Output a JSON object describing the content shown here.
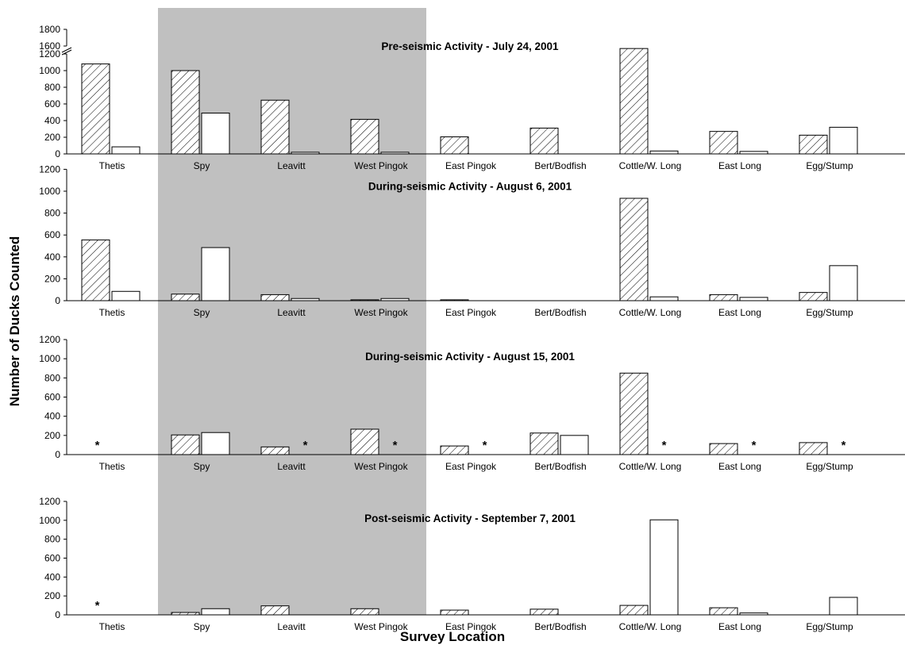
{
  "figure": {
    "ylabel": "Number of Ducks Counted",
    "xlabel": "Survey Location"
  },
  "chart_data": [
    {
      "type": "bar",
      "title": "Pre-seismic Activity - July 24, 2001",
      "categories": [
        "Thetis",
        "Spy",
        "Leavitt",
        "West Pingok",
        "East Pingok",
        "Bert/Bodfish",
        "Cottle/W. Long",
        "East Long",
        "Egg/Stump"
      ],
      "ylim": [
        0,
        1800
      ],
      "ticks": [
        0,
        200,
        400,
        600,
        800,
        1000,
        1200,
        1600,
        1800
      ],
      "axis_break": [
        1200,
        1600
      ],
      "series": [
        {
          "style": "hatched",
          "values": [
            1080,
            1000,
            645,
            415,
            205,
            310,
            1570,
            270,
            225
          ]
        },
        {
          "style": "open",
          "values": [
            85,
            490,
            20,
            20,
            0,
            0,
            35,
            30,
            320
          ]
        }
      ],
      "missing_marker": []
    },
    {
      "type": "bar",
      "title": "During-seismic Activity - August 6, 2001",
      "categories": [
        "Thetis",
        "Spy",
        "Leavitt",
        "West Pingok",
        "East Pingok",
        "Bert/Bodfish",
        "Cottle/W. Long",
        "East Long",
        "Egg/Stump"
      ],
      "ylim": [
        0,
        1200
      ],
      "ticks": [
        0,
        200,
        400,
        600,
        800,
        1000,
        1200
      ],
      "series": [
        {
          "style": "hatched",
          "values": [
            555,
            60,
            55,
            8,
            8,
            0,
            935,
            55,
            75
          ]
        },
        {
          "style": "open",
          "values": [
            85,
            485,
            20,
            20,
            0,
            0,
            35,
            30,
            320
          ]
        }
      ],
      "missing_marker": []
    },
    {
      "type": "bar",
      "title": "During-seismic Activity -  August 15, 2001",
      "categories": [
        "Thetis",
        "Spy",
        "Leavitt",
        "West Pingok",
        "East Pingok",
        "Bert/Bodfish",
        "Cottle/W. Long",
        "East Long",
        "Egg/Stump"
      ],
      "ylim": [
        0,
        1200
      ],
      "ticks": [
        0,
        200,
        400,
        600,
        800,
        1000,
        1200
      ],
      "series": [
        {
          "style": "hatched",
          "values": [
            0,
            205,
            80,
            265,
            90,
            225,
            850,
            115,
            125
          ]
        },
        {
          "style": "open",
          "values": [
            0,
            230,
            0,
            0,
            0,
            200,
            0,
            0,
            0
          ]
        }
      ],
      "missing_marker": [
        {
          "category": "Thetis",
          "series": 0,
          "text": "*"
        },
        {
          "category": "Leavitt",
          "series": 1,
          "text": "*"
        },
        {
          "category": "West Pingok",
          "series": 1,
          "text": "*"
        },
        {
          "category": "East Pingok",
          "series": 1,
          "text": "*"
        },
        {
          "category": "Cottle/W. Long",
          "series": 1,
          "text": "*"
        },
        {
          "category": "East Long",
          "series": 1,
          "text": "*"
        },
        {
          "category": "Egg/Stump",
          "series": 1,
          "text": "*"
        }
      ]
    },
    {
      "type": "bar",
      "title": "Post-seismic Activity - September 7, 2001",
      "categories": [
        "Thetis",
        "Spy",
        "Leavitt",
        "West Pingok",
        "East Pingok",
        "Bert/Bodfish",
        "Cottle/W. Long",
        "East Long",
        "Egg/Stump"
      ],
      "ylim": [
        0,
        1200
      ],
      "ticks": [
        0,
        200,
        400,
        600,
        800,
        1000,
        1200
      ],
      "series": [
        {
          "style": "hatched",
          "values": [
            0,
            25,
            95,
            65,
            50,
            60,
            100,
            75,
            0
          ]
        },
        {
          "style": "open",
          "values": [
            0,
            65,
            0,
            0,
            0,
            0,
            1005,
            20,
            185
          ]
        }
      ],
      "missing_marker": [
        {
          "category": "Thetis",
          "series": 0,
          "text": "*"
        }
      ]
    }
  ]
}
